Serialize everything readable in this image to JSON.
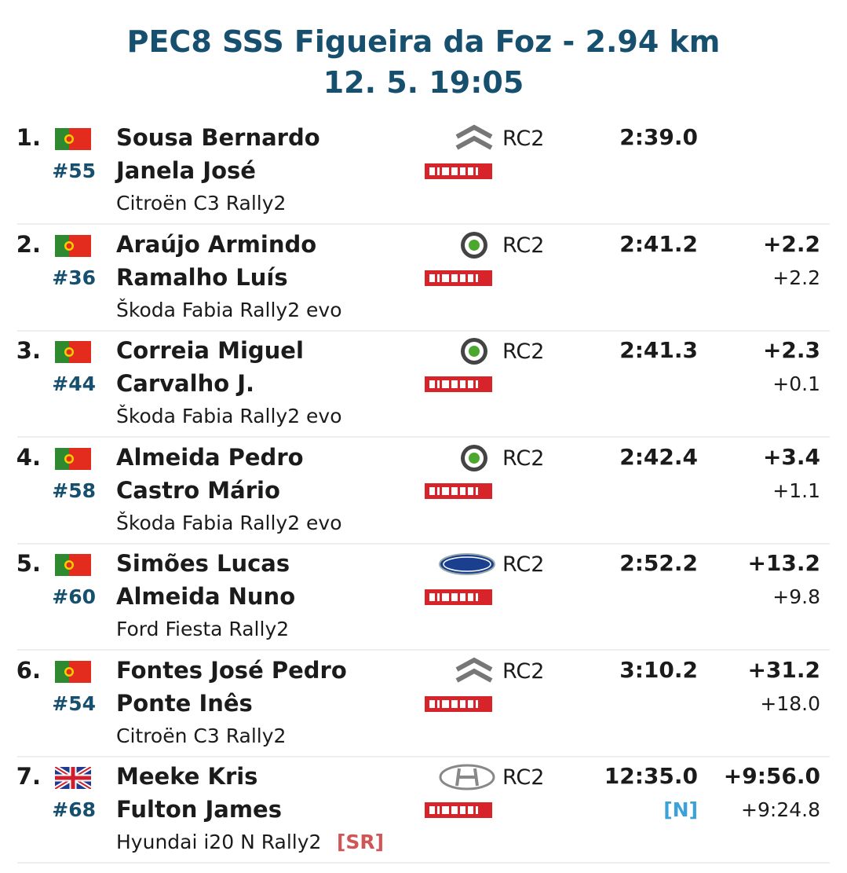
{
  "header": {
    "title": "PEC8 SSS Figueira da Foz - 2.94 km",
    "subtitle": "12. 5. 19:05"
  },
  "rows": [
    {
      "position": "1.",
      "number": "#55",
      "driver": "Sousa Bernardo",
      "codriver": "Janela José",
      "car": "Citroën C3 Rally2",
      "class": "RC2",
      "time": "2:39.0"
    },
    {
      "position": "2.",
      "number": "#36",
      "driver": "Araújo Armindo",
      "codriver": "Ramalho Luís",
      "car": "Škoda Fabia Rally2 evo",
      "class": "RC2",
      "time": "2:41.2",
      "diff_first": "+2.2",
      "diff_prev": "+2.2"
    },
    {
      "position": "3.",
      "number": "#44",
      "driver": "Correia Miguel",
      "codriver": "Carvalho J.",
      "car": "Škoda Fabia Rally2 evo",
      "class": "RC2",
      "time": "2:41.3",
      "diff_first": "+2.3",
      "diff_prev": "+0.1"
    },
    {
      "position": "4.",
      "number": "#58",
      "driver": "Almeida Pedro",
      "codriver": "Castro Mário",
      "car": "Škoda Fabia Rally2 evo",
      "class": "RC2",
      "time": "2:42.4",
      "diff_first": "+3.4",
      "diff_prev": "+1.1"
    },
    {
      "position": "5.",
      "number": "#60",
      "driver": "Simões Lucas",
      "codriver": "Almeida Nuno",
      "car": "Ford Fiesta Rally2",
      "class": "RC2",
      "time": "2:52.2",
      "diff_first": "+13.2",
      "diff_prev": "+9.8"
    },
    {
      "position": "6.",
      "number": "#54",
      "driver": "Fontes José Pedro",
      "codriver": "Ponte Inês",
      "car": "Citroën C3 Rally2",
      "class": "RC2",
      "time": "3:10.2",
      "diff_first": "+31.2",
      "diff_prev": "+18.0"
    },
    {
      "position": "7.",
      "number": "#68",
      "driver": "Meeke Kris",
      "codriver": "Fulton James",
      "car": "Hyundai i20 N Rally2",
      "car_note": "[SR]",
      "class": "RC2",
      "time": "12:35.0",
      "time_note": "[N]",
      "diff_first": "+9:56.0",
      "diff_prev": "+9:24.8"
    }
  ]
}
